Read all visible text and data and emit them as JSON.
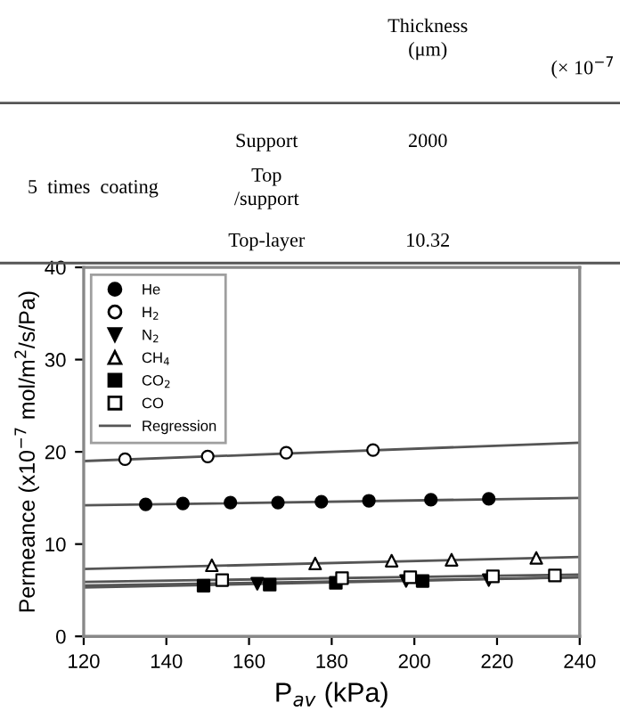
{
  "chart_data": {
    "type": "scatter",
    "xlabel": "P$_{av}$ (kPa)",
    "ylabel": "Permeance (x10$^{−7}$ mol/m$^{2}$/s/Pa)",
    "xlim": [
      120,
      240
    ],
    "xticks": [
      120,
      140,
      160,
      180,
      200,
      220,
      240
    ],
    "ylim": [
      0,
      40
    ],
    "yticks": [
      0,
      10,
      20,
      30,
      40
    ],
    "legend": "top left",
    "grid": false,
    "annotations": [
      "Thickness\n(μm)",
      "(× 10$^{−7}$",
      "Support",
      "2000",
      "5  times  coating",
      "Top\n/support",
      "Top-layer",
      "10.32"
    ],
    "series": [
      {
        "name": "He",
        "color": "#000000",
        "marker": "circle",
        "x": [
          135,
          144,
          155.5,
          167,
          177.5,
          189,
          204,
          218
        ],
        "values": [
          14.3,
          14.4,
          14.5,
          14.5,
          14.6,
          14.7,
          14.8,
          14.9
        ]
      },
      {
        "name": "H$_{2}$",
        "color": "#ffffff",
        "marker": "circle",
        "x": [
          130,
          150,
          169,
          190
        ],
        "values": [
          19.2,
          19.5,
          19.9,
          20.2
        ]
      },
      {
        "name": "N$_{2}$",
        "color": "#000000",
        "marker": "triangle_down",
        "x": [
          162,
          198,
          218
        ],
        "values": [
          5.7,
          6.0,
          6.1
        ]
      },
      {
        "name": "CH$_{4}$",
        "color": "#ffffff",
        "marker": "triangle",
        "x": [
          151,
          176,
          194.5,
          209,
          229.5
        ],
        "values": [
          7.7,
          7.9,
          8.2,
          8.3,
          8.5
        ]
      },
      {
        "name": "CO$_{2}$",
        "color": "#000000",
        "marker": "square",
        "x": [
          149,
          165,
          181,
          202
        ],
        "values": [
          5.5,
          5.6,
          5.8,
          6.0
        ]
      },
      {
        "name": "CO",
        "color": "#ffffff",
        "marker": "square",
        "x": [
          153.5,
          182.5,
          199,
          219,
          234
        ],
        "values": [
          6.1,
          6.3,
          6.4,
          6.5,
          6.6
        ]
      },
      {
        "name": "Regression",
        "type": "line",
        "color": "#555555",
        "marker": "none",
        "x": [
          120,
          240
        ],
        "values": [
          19.0,
          21.0
        ]
      },
      {
        "type": "line",
        "color": "#555555",
        "marker": "none",
        "x": [
          120,
          240
        ],
        "values": [
          14.2,
          15.0
        ]
      },
      {
        "type": "line",
        "color": "#555555",
        "marker": "none",
        "x": [
          120,
          240
        ],
        "values": [
          7.3,
          8.6
        ]
      },
      {
        "type": "line",
        "color": "#555555",
        "marker": "none",
        "x": [
          120,
          240
        ],
        "values": [
          5.9,
          6.7
        ]
      },
      {
        "type": "line",
        "color": "#555555",
        "marker": "none",
        "x": [
          120,
          240
        ],
        "values": [
          5.5,
          6.4
        ]
      },
      {
        "type": "line",
        "color": "#555555",
        "marker": "none",
        "x": [
          120,
          240
        ],
        "values": [
          5.3,
          6.4
        ]
      }
    ]
  }
}
